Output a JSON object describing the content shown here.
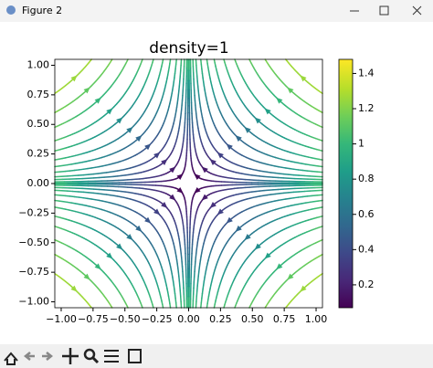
{
  "window_title": "Figure 2",
  "chart_data": {
    "type": "streamplot",
    "title": "density=1",
    "xlim": [
      -1.05,
      1.05
    ],
    "ylim": [
      -1.05,
      1.05
    ],
    "xticks": [
      {
        "value": -1,
        "label": "−1.00"
      },
      {
        "value": -0.75,
        "label": "−0.75"
      },
      {
        "value": -0.5,
        "label": "−0.50"
      },
      {
        "value": -0.25,
        "label": "−0.25"
      },
      {
        "value": 0,
        "label": "0.00"
      },
      {
        "value": 0.25,
        "label": "0.25"
      },
      {
        "value": 0.5,
        "label": "0.50"
      },
      {
        "value": 0.75,
        "label": "0.75"
      },
      {
        "value": 1,
        "label": "1.00"
      }
    ],
    "yticks": [
      {
        "value": -1,
        "label": "−1.00"
      },
      {
        "value": -0.75,
        "label": "−0.75"
      },
      {
        "value": -0.5,
        "label": "−0.50"
      },
      {
        "value": -0.25,
        "label": "−0.25"
      },
      {
        "value": 0,
        "label": "0.00"
      },
      {
        "value": 0.25,
        "label": "0.25"
      },
      {
        "value": 0.5,
        "label": "0.50"
      },
      {
        "value": 0.75,
        "label": "0.75"
      },
      {
        "value": 1,
        "label": "1.00"
      }
    ],
    "colorbar_lim": [
      0.07,
      1.48
    ],
    "colorbar_ticks": [
      0.2,
      0.4,
      0.6,
      0.8,
      1,
      1.2,
      1.4
    ]
  }
}
